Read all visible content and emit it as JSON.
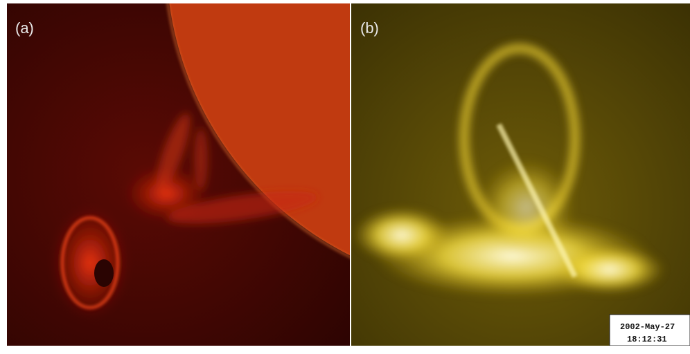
{
  "panels": [
    {
      "label": "(a)"
    },
    {
      "label": "(b)",
      "timestamp": {
        "date": "2002-May-27",
        "time": "18:12:31"
      }
    }
  ]
}
